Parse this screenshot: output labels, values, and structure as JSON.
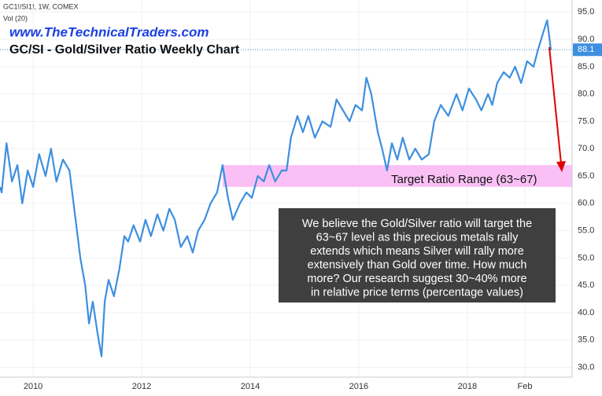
{
  "chart_data": {
    "type": "line",
    "symbol": "GC1!/SI1!, 1W, COMEX",
    "volume_label": "Vol (20)",
    "website": "www.TheTechnicalTraders.com",
    "title": "GC/SI - Gold/Silver Ratio Weekly Chart",
    "target_label": "Target Ratio Range (63~67)",
    "target_range": [
      63,
      67
    ],
    "target_start": 2013.49,
    "last_value": 88.1,
    "note_lines": [
      "We believe the Gold/Silver ratio will target the",
      "63~67 level as this precious metals rally",
      "extends which means Silver will rally more",
      "extensively than Gold over time.  How much",
      "more?  Our research suggest 30~40% more",
      "in relative price terms (percentage values)"
    ],
    "xlim": [
      2009.39,
      2019.93
    ],
    "xticks": [
      2010,
      2012,
      2014,
      2016,
      2018,
      {
        "value": 2019.06,
        "label": "Feb"
      }
    ],
    "ylim": [
      28.2,
      97.2
    ],
    "yticks": [
      {
        "value": 30,
        "label": "30.0"
      },
      {
        "value": 35,
        "label": "35.0"
      },
      {
        "value": 40,
        "label": "40.0"
      },
      {
        "value": 45,
        "label": "45.0"
      },
      {
        "value": 50,
        "label": "50.0"
      },
      {
        "value": 55,
        "label": "55.0"
      },
      {
        "value": 60,
        "label": "60.0"
      },
      {
        "value": 65,
        "label": "65.0"
      },
      {
        "value": 70,
        "label": "70.0"
      },
      {
        "value": 75,
        "label": "75.0"
      },
      {
        "value": 80,
        "label": "80.0"
      },
      {
        "value": 85,
        "label": "85.0"
      },
      {
        "value": 90,
        "label": "90.0"
      },
      {
        "value": 95,
        "label": "95.0"
      }
    ],
    "x": [
      2009.39,
      2009.42,
      2009.51,
      2009.61,
      2009.71,
      2009.8,
      2009.9,
      2010.0,
      2010.11,
      2010.23,
      2010.33,
      2010.43,
      2010.55,
      2010.67,
      2010.77,
      2010.87,
      2010.96,
      2011.03,
      2011.1,
      2011.19,
      2011.26,
      2011.32,
      2011.39,
      2011.49,
      2011.59,
      2011.68,
      2011.75,
      2011.85,
      2011.97,
      2012.07,
      2012.17,
      2012.29,
      2012.4,
      2012.51,
      2012.61,
      2012.72,
      2012.84,
      2012.94,
      2013.04,
      2013.16,
      2013.27,
      2013.39,
      2013.49,
      2013.59,
      2013.68,
      2013.81,
      2013.93,
      2014.03,
      2014.14,
      2014.25,
      2014.35,
      2014.46,
      2014.58,
      2014.67,
      2014.75,
      2014.87,
      2014.97,
      2015.07,
      2015.19,
      2015.33,
      2015.48,
      2015.59,
      2015.71,
      2015.83,
      2015.94,
      2016.06,
      2016.14,
      2016.23,
      2016.35,
      2016.43,
      2016.52,
      2016.61,
      2016.71,
      2016.81,
      2016.93,
      2017.04,
      2017.16,
      2017.29,
      2017.39,
      2017.51,
      2017.65,
      2017.8,
      2017.91,
      2018.03,
      2018.16,
      2018.26,
      2018.38,
      2018.46,
      2018.55,
      2018.67,
      2018.78,
      2018.88,
      2018.99,
      2019.1,
      2019.22,
      2019.3,
      2019.39,
      2019.47,
      2019.54
    ],
    "series": [
      {
        "name": "GC1!/SI1!",
        "color": "#3d8fe0",
        "values": [
          63,
          62,
          71,
          64,
          67,
          60,
          66,
          63,
          69,
          65,
          70,
          64,
          68,
          66,
          58,
          50,
          45,
          38,
          42,
          36,
          32,
          42,
          46,
          43,
          48,
          54,
          53,
          56,
          53,
          57,
          54,
          58,
          55,
          59,
          57,
          52,
          54,
          51,
          55,
          57,
          60,
          62,
          67,
          61,
          57,
          60,
          62,
          61,
          65,
          64,
          67,
          64,
          66,
          66,
          72,
          76,
          73,
          76,
          72,
          75,
          74,
          79,
          77,
          75,
          78,
          77,
          83,
          80,
          73,
          70,
          66,
          71,
          68,
          72,
          68,
          70,
          68,
          69,
          75,
          78,
          76,
          80,
          77,
          81,
          79,
          77,
          80,
          78,
          82,
          84,
          83,
          85,
          82,
          86,
          85,
          88,
          91,
          93.5,
          88
        ]
      }
    ]
  }
}
